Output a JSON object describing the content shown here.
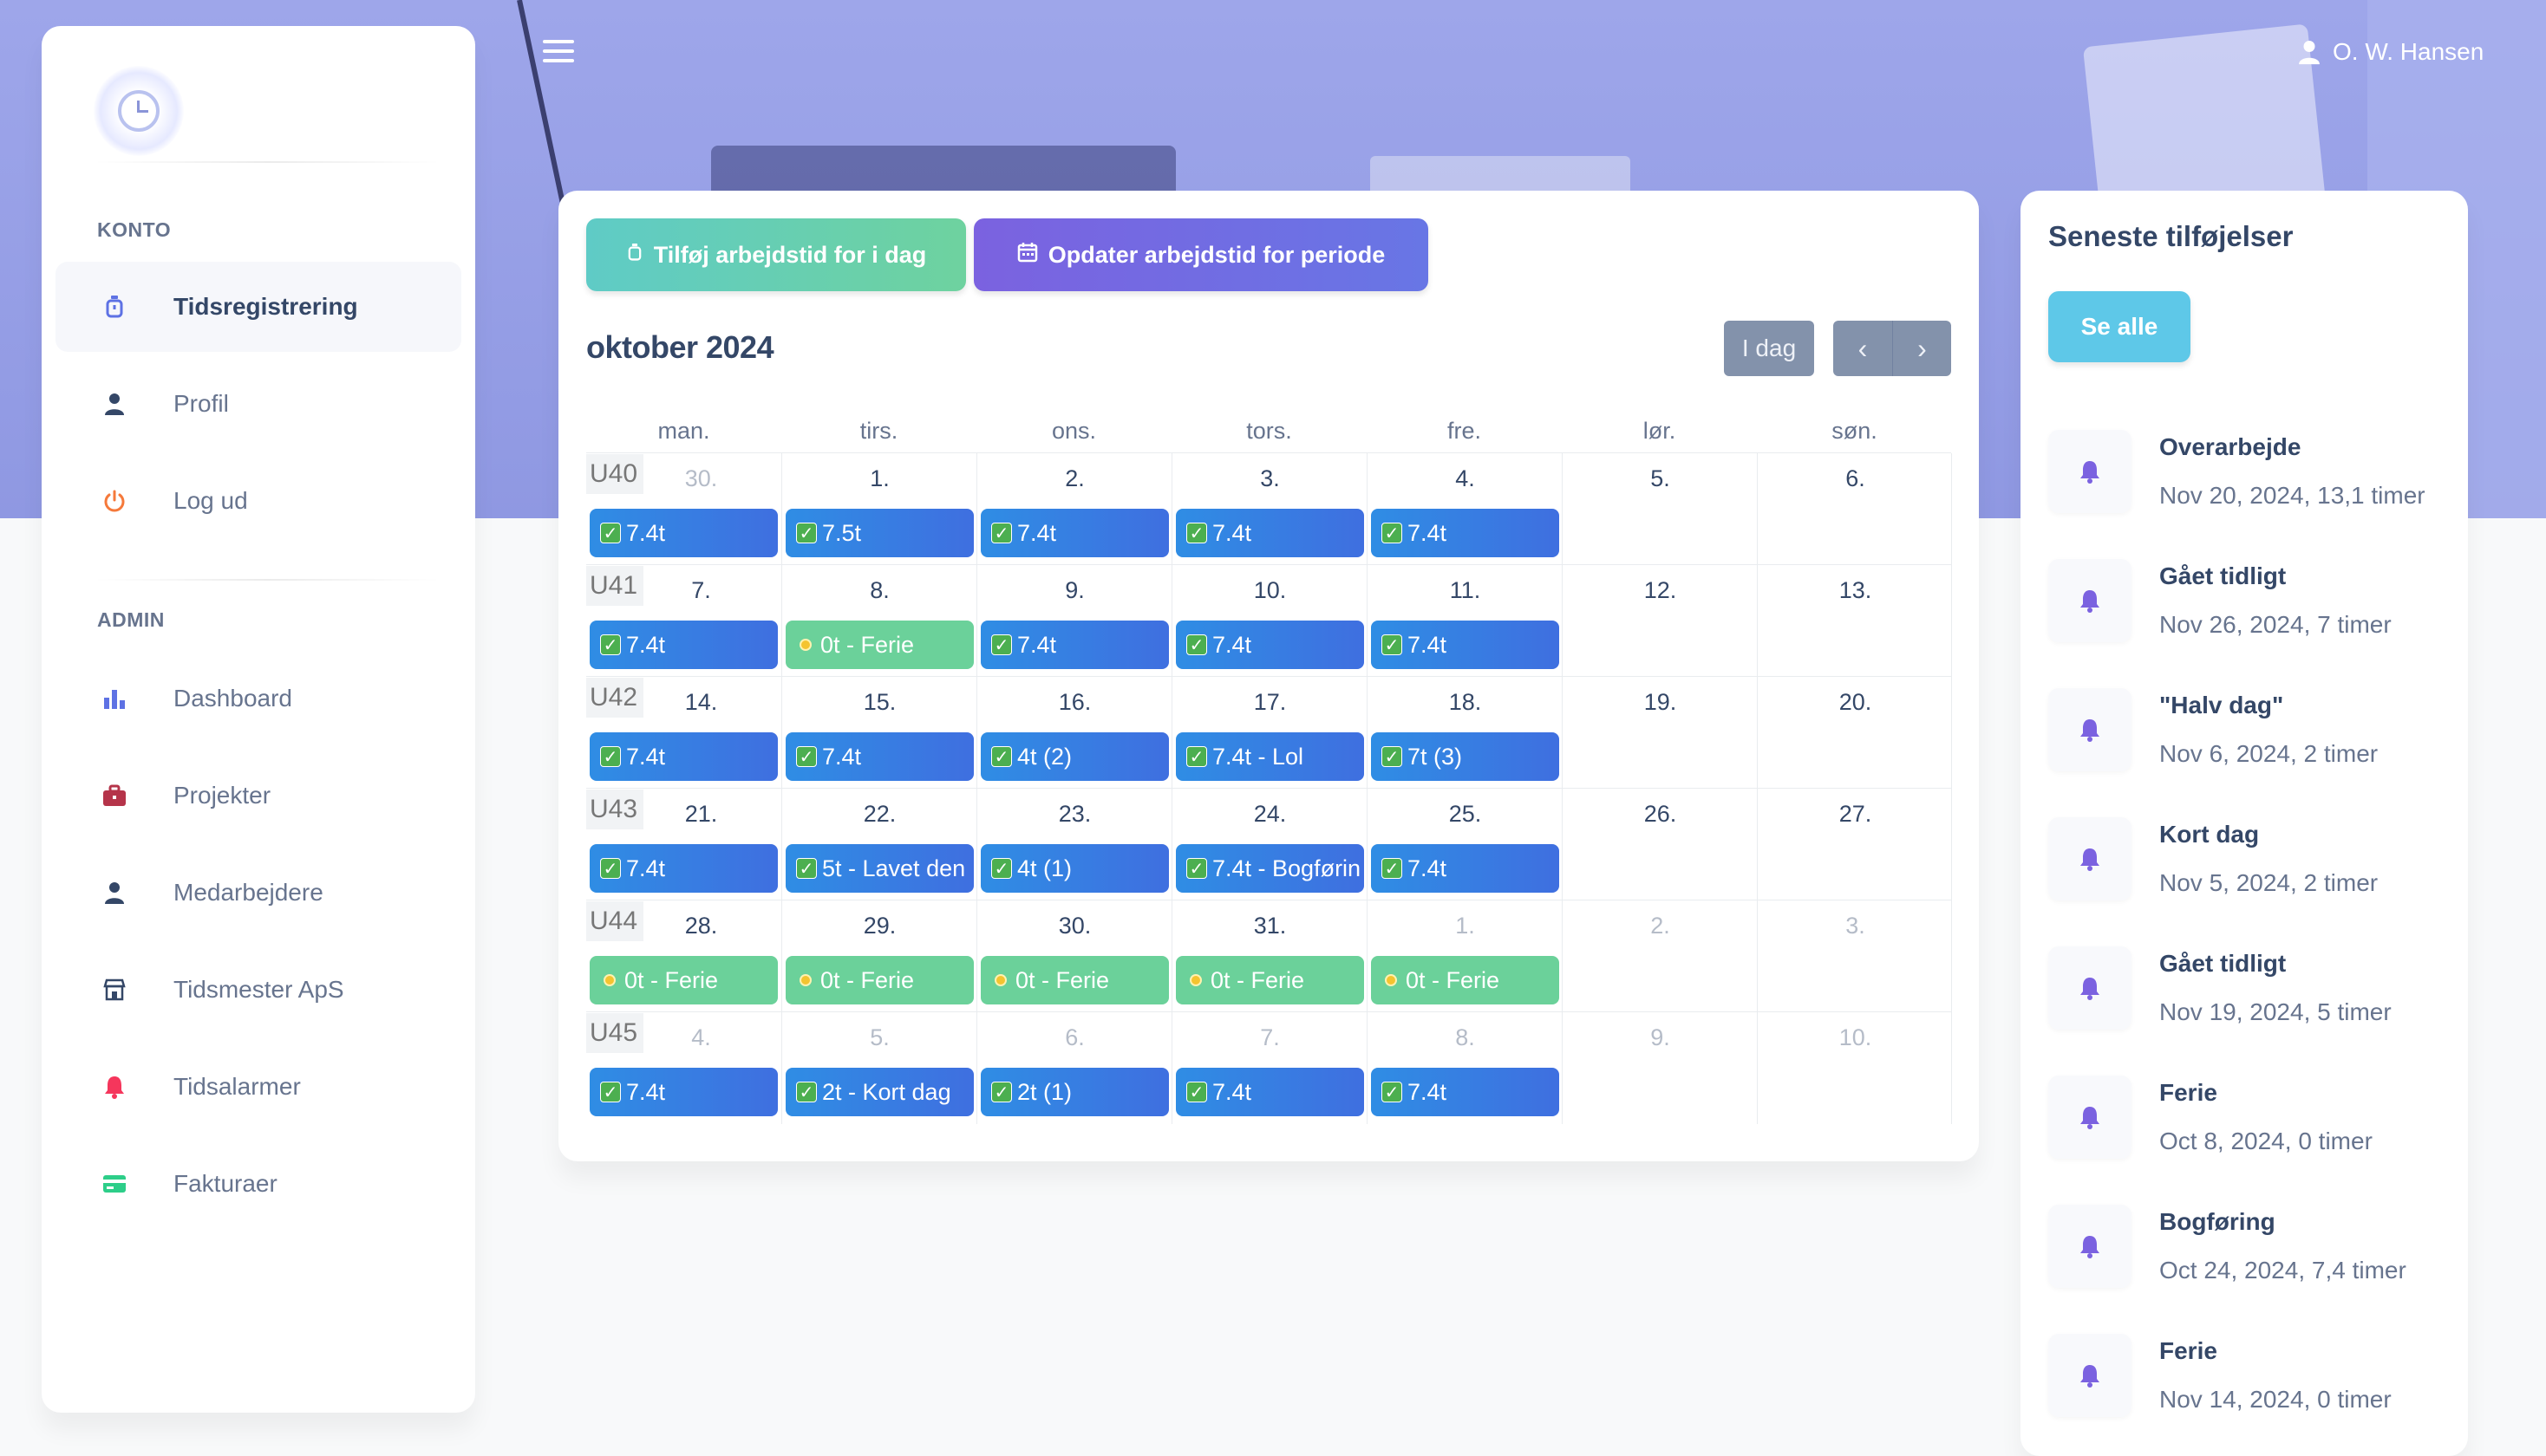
{
  "header": {
    "user_name": "O. W. Hansen"
  },
  "sidebar": {
    "sections": [
      {
        "title": "KONTO",
        "items": [
          {
            "label": "Tidsregistrering",
            "icon": "stopwatch-icon",
            "active": true
          },
          {
            "label": "Profil",
            "icon": "user-icon"
          },
          {
            "label": "Log ud",
            "icon": "power-icon"
          }
        ]
      },
      {
        "title": "ADMIN",
        "items": [
          {
            "label": "Dashboard",
            "icon": "bar-chart-icon"
          },
          {
            "label": "Projekter",
            "icon": "briefcase-icon"
          },
          {
            "label": "Medarbejdere",
            "icon": "user-icon"
          },
          {
            "label": "Tidsmester ApS",
            "icon": "building-icon"
          },
          {
            "label": "Tidsalarmer",
            "icon": "bell-icon"
          },
          {
            "label": "Fakturaer",
            "icon": "credit-card-icon"
          }
        ]
      }
    ]
  },
  "calendar": {
    "add_button": "Tilføj arbejdstid for i dag",
    "update_button": "Opdater arbejdstid for periode",
    "title": "oktober 2024",
    "today_button": "I dag",
    "prev_symbol": "‹",
    "next_symbol": "›",
    "days_of_week": [
      "man.",
      "tirs.",
      "ons.",
      "tors.",
      "fre.",
      "lør.",
      "søn."
    ],
    "weeks": [
      {
        "label": "U40",
        "days": [
          {
            "n": "30.",
            "muted": true,
            "event": "7.4t",
            "type": "work"
          },
          {
            "n": "1.",
            "event": "7.5t",
            "type": "work"
          },
          {
            "n": "2.",
            "event": "7.4t",
            "type": "work"
          },
          {
            "n": "3.",
            "event": "7.4t",
            "type": "work"
          },
          {
            "n": "4.",
            "event": "7.4t",
            "type": "work"
          },
          {
            "n": "5."
          },
          {
            "n": "6."
          }
        ]
      },
      {
        "label": "U41",
        "days": [
          {
            "n": "7.",
            "event": "7.4t",
            "type": "work"
          },
          {
            "n": "8.",
            "event": "0t - Ferie",
            "type": "ferie"
          },
          {
            "n": "9.",
            "event": "7.4t",
            "type": "work"
          },
          {
            "n": "10.",
            "event": "7.4t",
            "type": "work"
          },
          {
            "n": "11.",
            "event": "7.4t",
            "type": "work"
          },
          {
            "n": "12."
          },
          {
            "n": "13."
          }
        ]
      },
      {
        "label": "U42",
        "days": [
          {
            "n": "14.",
            "event": "7.4t",
            "type": "work"
          },
          {
            "n": "15.",
            "event": "7.4t",
            "type": "work"
          },
          {
            "n": "16.",
            "event": "4t (2)",
            "type": "work"
          },
          {
            "n": "17.",
            "event": "7.4t - Lol",
            "type": "work"
          },
          {
            "n": "18.",
            "event": "7t (3)",
            "type": "work"
          },
          {
            "n": "19."
          },
          {
            "n": "20."
          }
        ]
      },
      {
        "label": "U43",
        "days": [
          {
            "n": "21.",
            "event": "7.4t",
            "type": "work"
          },
          {
            "n": "22.",
            "event": "5t - Lavet den",
            "type": "work"
          },
          {
            "n": "23.",
            "event": "4t (1)",
            "type": "work"
          },
          {
            "n": "24.",
            "event": "7.4t - Bogførin",
            "type": "work"
          },
          {
            "n": "25.",
            "event": "7.4t",
            "type": "work"
          },
          {
            "n": "26."
          },
          {
            "n": "27."
          }
        ]
      },
      {
        "label": "U44",
        "days": [
          {
            "n": "28.",
            "event": "0t - Ferie",
            "type": "ferie"
          },
          {
            "n": "29.",
            "event": "0t - Ferie",
            "type": "ferie"
          },
          {
            "n": "30.",
            "event": "0t - Ferie",
            "type": "ferie"
          },
          {
            "n": "31.",
            "event": "0t - Ferie",
            "type": "ferie"
          },
          {
            "n": "1.",
            "muted": true,
            "event": "0t - Ferie",
            "type": "ferie"
          },
          {
            "n": "2.",
            "muted": true
          },
          {
            "n": "3.",
            "muted": true
          }
        ]
      },
      {
        "label": "U45",
        "days": [
          {
            "n": "4.",
            "muted": true,
            "event": "7.4t",
            "type": "work"
          },
          {
            "n": "5.",
            "muted": true,
            "event": "2t - Kort dag",
            "type": "work"
          },
          {
            "n": "6.",
            "muted": true,
            "event": "2t (1)",
            "type": "work"
          },
          {
            "n": "7.",
            "muted": true,
            "event": "7.4t",
            "type": "work"
          },
          {
            "n": "8.",
            "muted": true,
            "event": "7.4t",
            "type": "work"
          },
          {
            "n": "9.",
            "muted": true
          },
          {
            "n": "10.",
            "muted": true
          }
        ]
      }
    ]
  },
  "recent": {
    "title": "Seneste tilføjelser",
    "see_all": "Se alle",
    "items": [
      {
        "name": "Overarbejde",
        "detail": "Nov 20, 2024, 13,1 timer"
      },
      {
        "name": "Gået tidligt",
        "detail": "Nov 26, 2024, 7 timer"
      },
      {
        "name": "\"Halv dag\"",
        "detail": "Nov 6, 2024, 2 timer"
      },
      {
        "name": "Kort dag",
        "detail": "Nov 5, 2024, 2 timer"
      },
      {
        "name": "Gået tidligt",
        "detail": "Nov 19, 2024, 5 timer"
      },
      {
        "name": "Ferie",
        "detail": "Oct 8, 2024, 0 timer"
      },
      {
        "name": "Bogføring",
        "detail": "Oct 24, 2024, 7,4 timer"
      },
      {
        "name": "Ferie",
        "detail": "Nov 14, 2024, 0 timer"
      }
    ]
  },
  "colors": {
    "accent": "#6876e5",
    "work_event": "#2f8de4",
    "ferie_event": "#6bd19a",
    "bell": "#7b62e0"
  }
}
